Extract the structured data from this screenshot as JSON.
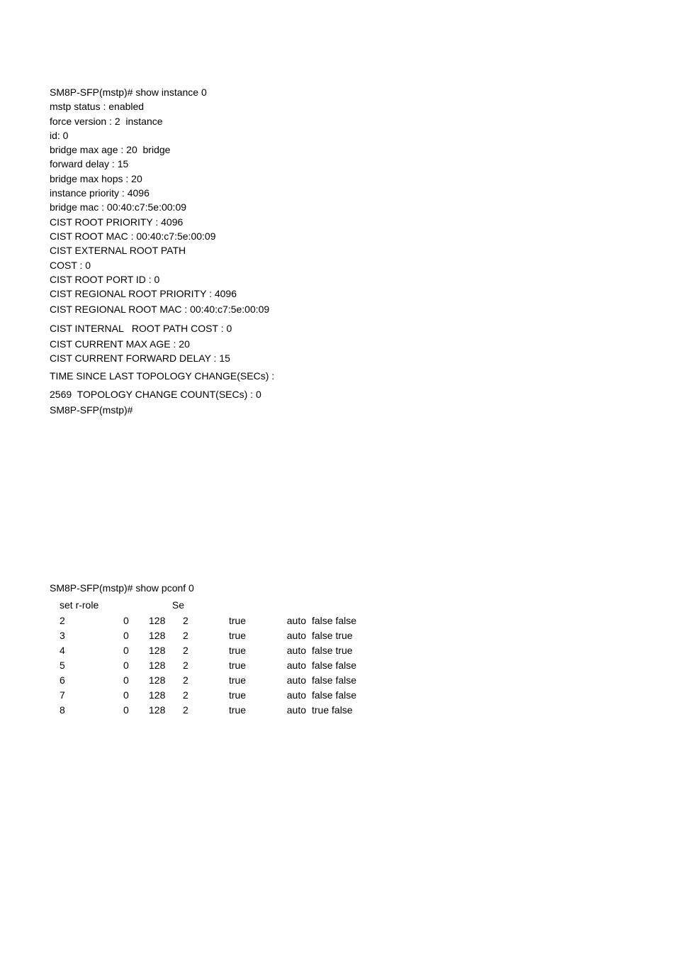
{
  "terminal": {
    "prompt": "SM8P-SFP(mstp)#",
    "cmd1": "SM8P-SFP(mstp)# show instance 0",
    "lines1": [
      "mstp status : enabled",
      "force version : 2  instance",
      "id: 0",
      "bridge max age : 20  bridge",
      "forward delay : 15",
      "bridge max hops : 20",
      "instance priority : 4096",
      "bridge mac : 00:40:c7:5e:00:09",
      "CIST ROOT PRIORITY : 4096",
      "CIST ROOT MAC : 00:40:c7:5e:00:09",
      "CIST EXTERNAL ROOT PATH",
      "COST : 0",
      "CIST ROOT PORT ID : 0",
      "CIST REGIONAL ROOT PRIORITY : 4096"
    ],
    "lines2": [
      "CIST REGIONAL ROOT MAC : 00:40:c7:5e:00:09"
    ],
    "lines3": [
      "CIST INTERNAL   ROOT PATH COST : 0"
    ],
    "lines4": [
      "CIST CURRENT MAX AGE : 20",
      "CIST CURRENT FORWARD DELAY : 15"
    ],
    "lines5": [
      "TIME SINCE LAST TOPOLOGY CHANGE(SECs) :"
    ],
    "lines6": [
      "2569  TOPOLOGY CHANGE COUNT(SECs) : 0"
    ],
    "lines7": [
      "SM8P-SFP(mstp)#"
    ],
    "cmd2": "SM8P-SFP(mstp)# show pconf 0",
    "header": {
      "setrole": "set r-role",
      "se": "Se"
    },
    "rows": [
      {
        "c1": "2",
        "c2": "0",
        "c3": "128",
        "c4": "2",
        "c5": "true",
        "c6": "auto",
        "c7": "false false"
      },
      {
        "c1": "3",
        "c2": "0",
        "c3": "128",
        "c4": "2",
        "c5": "true",
        "c6": "auto",
        "c7": "false  true"
      },
      {
        "c1": "4",
        "c2": "0",
        "c3": "128",
        "c4": "2",
        "c5": "true",
        "c6": "auto",
        "c7": "false  true"
      },
      {
        "c1": "5",
        "c2": "0",
        "c3": "128",
        "c4": "2",
        "c5": "true",
        "c6": "auto",
        "c7": "false false"
      },
      {
        "c1": "6",
        "c2": "0",
        "c3": "128",
        "c4": "2",
        "c5": "true",
        "c6": "auto",
        "c7": "false false"
      },
      {
        "c1": "7",
        "c2": "0",
        "c3": "128",
        "c4": "2",
        "c5": "true",
        "c6": "auto",
        "c7": "false false"
      },
      {
        "c1": "8",
        "c2": "0",
        "c3": "128",
        "c4": "2",
        "c5": "true",
        "c6": "auto",
        "c7": " true false"
      }
    ]
  },
  "style": {
    "background_color": "#ffffff",
    "text_color": "#000000",
    "font_family": "Arial, Helvetica, sans-serif",
    "font_size_pt": 10.5,
    "line_height": 1.45
  }
}
